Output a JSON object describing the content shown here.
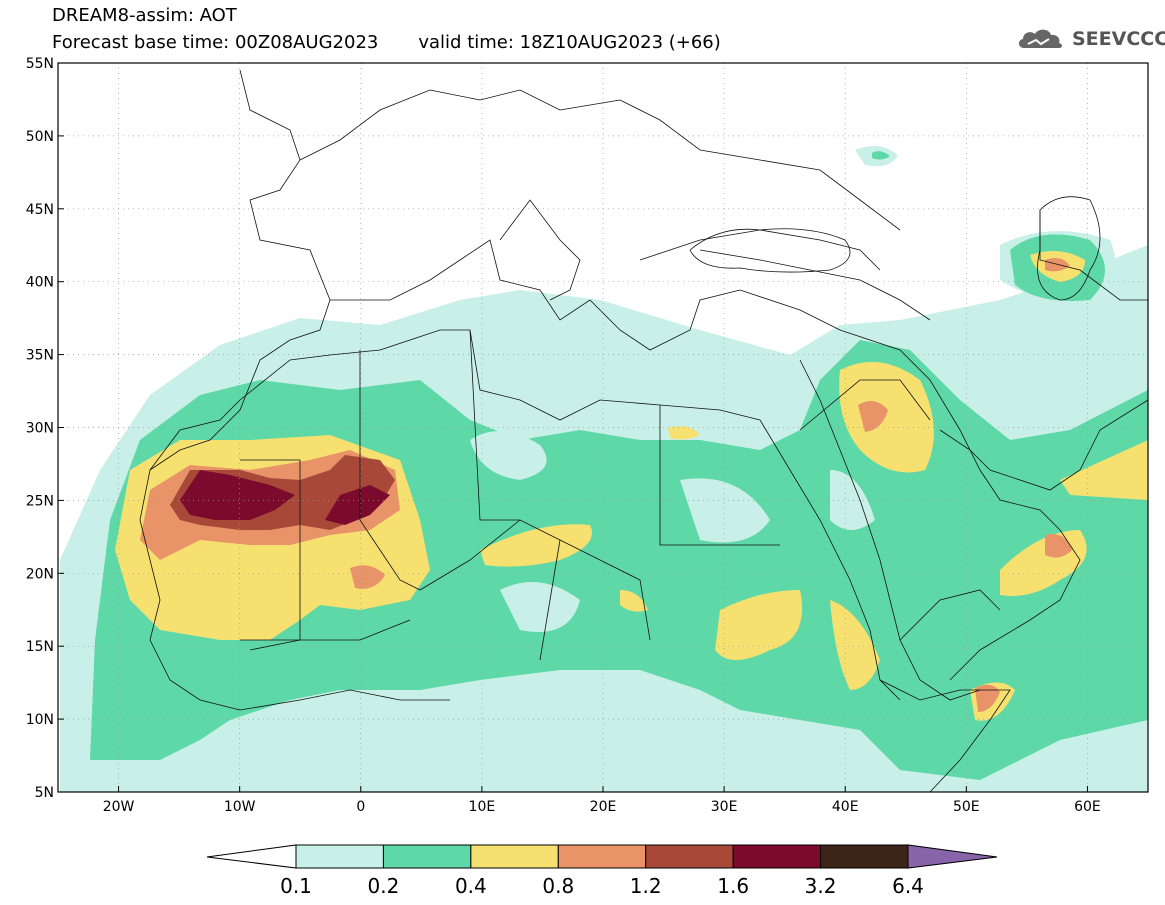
{
  "header": {
    "model_title": "DREAM8-assim: AOT",
    "base_time": "Forecast base time: 00Z08AUG2023",
    "valid_time": "valid time: 18Z10AUG2023 (+66)"
  },
  "logo": {
    "text": "SEEVCCC",
    "icon": "cloud-icon"
  },
  "map": {
    "lon_range": [
      -25,
      65
    ],
    "lat_range": [
      5,
      55
    ],
    "lon_ticks": [
      {
        "lon": -20,
        "label": "20W"
      },
      {
        "lon": -10,
        "label": "10W"
      },
      {
        "lon": 0,
        "label": "0"
      },
      {
        "lon": 10,
        "label": "10E"
      },
      {
        "lon": 20,
        "label": "20E"
      },
      {
        "lon": 30,
        "label": "30E"
      },
      {
        "lon": 40,
        "label": "40E"
      },
      {
        "lon": 50,
        "label": "50E"
      },
      {
        "lon": 60,
        "label": "60E"
      }
    ],
    "lat_ticks": [
      {
        "lat": 5,
        "label": "5N"
      },
      {
        "lat": 10,
        "label": "10N"
      },
      {
        "lat": 15,
        "label": "15N"
      },
      {
        "lat": 20,
        "label": "20N"
      },
      {
        "lat": 25,
        "label": "25N"
      },
      {
        "lat": 30,
        "label": "30N"
      },
      {
        "lat": 35,
        "label": "35N"
      },
      {
        "lat": 40,
        "label": "40N"
      },
      {
        "lat": 45,
        "label": "45N"
      },
      {
        "lat": 50,
        "label": "50N"
      },
      {
        "lat": 55,
        "label": "55N"
      }
    ],
    "grid": true
  },
  "colorbar": {
    "colors": [
      "#c8f0e8",
      "#5fd8a8",
      "#f5e070",
      "#e89468",
      "#a84838",
      "#7c0a2c",
      "#3c2418",
      "#8a64a8"
    ],
    "labels": [
      "0.1",
      "0.2",
      "0.4",
      "0.8",
      "1.2",
      "1.6",
      "3.2",
      "6.4"
    ]
  }
}
